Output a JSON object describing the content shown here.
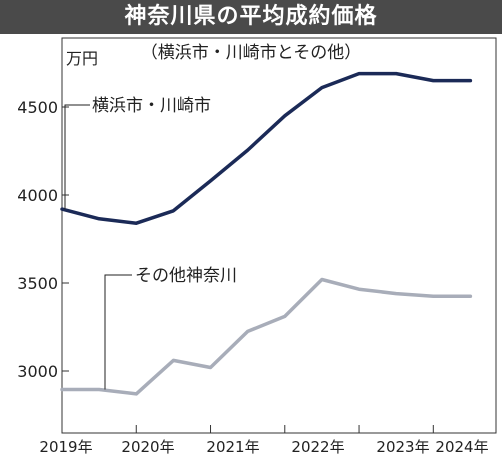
{
  "header": {
    "title": "神奈川県の平均成約価格",
    "subtitle": "（横浜市・川崎市とその他）"
  },
  "chart_data": {
    "type": "line",
    "unit_label": "万円",
    "x_ticks": [
      "2019年",
      "2020年",
      "2021年",
      "2022年",
      "2023年",
      "2024年"
    ],
    "y_ticks": [
      3000,
      3500,
      4000,
      4500
    ],
    "ylim": [
      2800,
      4750
    ],
    "xlim": [
      2019.0,
      2024.75
    ],
    "grid": false,
    "series": [
      {
        "name": "横浜市・川崎市",
        "color": "#1b2a57",
        "x": [
          2019.0,
          2019.5,
          2020.0,
          2020.5,
          2021.0,
          2021.5,
          2022.0,
          2022.5,
          2023.0,
          2023.5,
          2024.0,
          2024.5
        ],
        "values": [
          3920,
          3865,
          3840,
          3910,
          4080,
          4255,
          4450,
          4610,
          4690,
          4690,
          4650,
          4650
        ]
      },
      {
        "name": "その他神奈川",
        "color": "#a8adb9",
        "x": [
          2019.0,
          2019.5,
          2020.0,
          2020.5,
          2021.0,
          2021.5,
          2022.0,
          2022.5,
          2023.0,
          2023.5,
          2024.0,
          2024.5
        ],
        "values": [
          2895,
          2895,
          2870,
          3060,
          3020,
          3225,
          3310,
          3520,
          3465,
          3440,
          3425,
          3425
        ]
      }
    ]
  }
}
